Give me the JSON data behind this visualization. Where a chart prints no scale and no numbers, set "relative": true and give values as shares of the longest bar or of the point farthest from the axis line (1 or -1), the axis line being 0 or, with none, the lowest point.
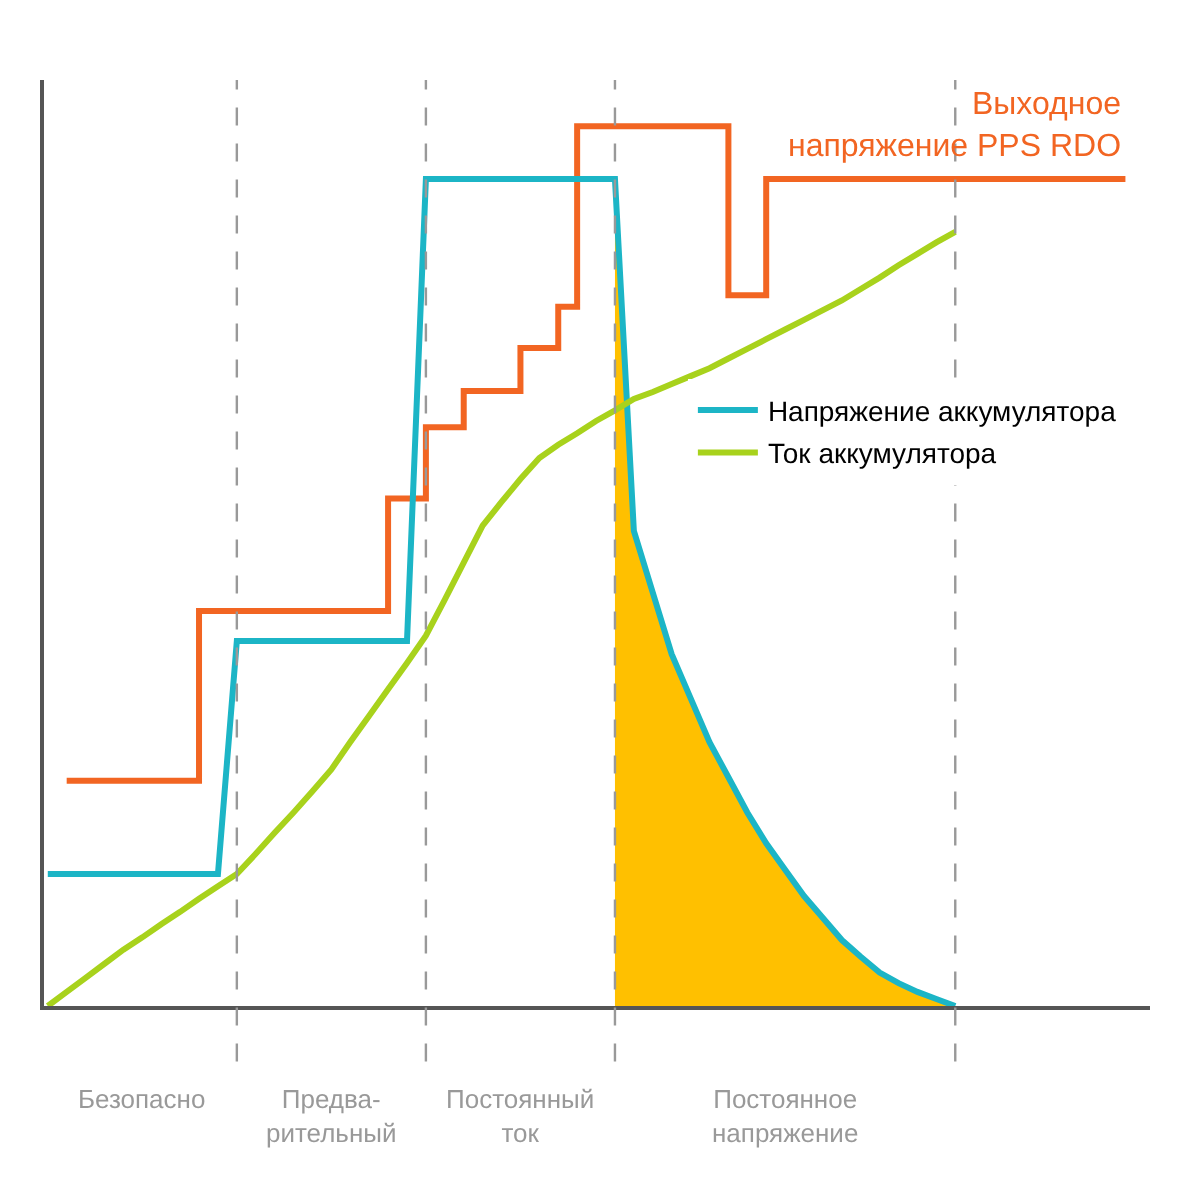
{
  "chart_data": {
    "type": "line",
    "relative": true,
    "grid": "x",
    "legend": "right",
    "marker": "none",
    "line_style": "solid",
    "categories": [
      null,
      null,
      null,
      null,
      null,
      null,
      null,
      null,
      null,
      null,
      null,
      null,
      null,
      null,
      null,
      null,
      null,
      null,
      null,
      null,
      null,
      null,
      null,
      null,
      null,
      null,
      null,
      null,
      null,
      null,
      null,
      null,
      null,
      null,
      null,
      null,
      null,
      null,
      null,
      null,
      null,
      null,
      null,
      null,
      null,
      null,
      null,
      null,
      null,
      null,
      null,
      null,
      null,
      null,
      null,
      null,
      null,
      null
    ],
    "series": [
      {
        "name": "Выходное напряжение PPS RDO",
        "type": "step",
        "color": "#f26522",
        "values": [
          null,
          0.256,
          0.256,
          0.256,
          0.256,
          0.256,
          0.256,
          0.256,
          0.449,
          0.449,
          0.449,
          0.449,
          0.449,
          0.449,
          0.449,
          0.449,
          0.449,
          0.449,
          0.577,
          0.577,
          0.658,
          0.658,
          0.699,
          0.699,
          0.699,
          0.748,
          0.748,
          0.795,
          1.0,
          1.0,
          1.0,
          1.0,
          1.0,
          1.0,
          1.0,
          1.0,
          0.808,
          0.808,
          0.94,
          0.94,
          0.94,
          0.94,
          0.94,
          0.94,
          0.94,
          0.94,
          0.94,
          0.94,
          0.94,
          0.94,
          0.94,
          0.94,
          0.94,
          0.94,
          0.94,
          0.94,
          0.94,
          0.94
        ]
      },
      {
        "type": "area",
        "color": "#ffc000",
        "values": [
          null,
          null,
          null,
          null,
          null,
          null,
          null,
          null,
          null,
          null,
          null,
          null,
          null,
          null,
          null,
          null,
          null,
          null,
          null,
          null,
          null,
          null,
          null,
          null,
          null,
          null,
          null,
          null,
          null,
          null,
          0.94,
          0.54,
          0.47,
          0.4,
          0.35,
          0.3,
          0.26,
          0.22,
          0.185,
          0.155,
          0.125,
          0.1,
          0.075,
          0.056,
          0.038,
          0.026,
          0.016,
          0.008,
          0,
          null,
          null,
          null,
          null,
          null,
          null,
          null,
          null,
          null
        ]
      },
      {
        "name": "Напряжение аккумулятора",
        "color": "#1cb5c6",
        "values": [
          0.15,
          0.15,
          0.15,
          0.15,
          0.15,
          0.15,
          0.15,
          0.15,
          0.15,
          0.15,
          0.415,
          0.415,
          0.415,
          0.415,
          0.415,
          0.415,
          0.415,
          0.415,
          0.415,
          0.415,
          0.94,
          0.94,
          0.94,
          0.94,
          0.94,
          0.94,
          0.94,
          0.94,
          0.94,
          0.94,
          0.94,
          0.54,
          0.47,
          0.4,
          0.35,
          0.3,
          0.26,
          0.22,
          0.185,
          0.155,
          0.125,
          0.1,
          0.075,
          0.056,
          0.038,
          0.026,
          0.016,
          0.008,
          0,
          null,
          null,
          null,
          null,
          null,
          null,
          null,
          null,
          null
        ]
      },
      {
        "name": "Ток аккумулятора",
        "color": "#a8d21c",
        "values": [
          0,
          0.016,
          0.032,
          0.048,
          0.064,
          0.078,
          0.093,
          0.107,
          0.122,
          0.136,
          0.15,
          0.173,
          0.197,
          0.22,
          0.244,
          0.269,
          0.3,
          0.33,
          0.36,
          0.39,
          0.421,
          0.462,
          0.504,
          0.546,
          0.573,
          0.599,
          0.623,
          0.638,
          0.651,
          0.665,
          0.677,
          0.69,
          0.698,
          0.707,
          0.716,
          0.725,
          0.736,
          0.747,
          0.758,
          0.769,
          0.78,
          0.791,
          0.802,
          0.815,
          0.828,
          0.842,
          0.855,
          0.868,
          0.88,
          null,
          null,
          null,
          null,
          null,
          null,
          null,
          null,
          null
        ]
      }
    ],
    "annotations": [
      "Безопасно",
      "Предва-\nрительный",
      "Постоянный\nток",
      "Постоянное\nнапряжение"
    ]
  }
}
